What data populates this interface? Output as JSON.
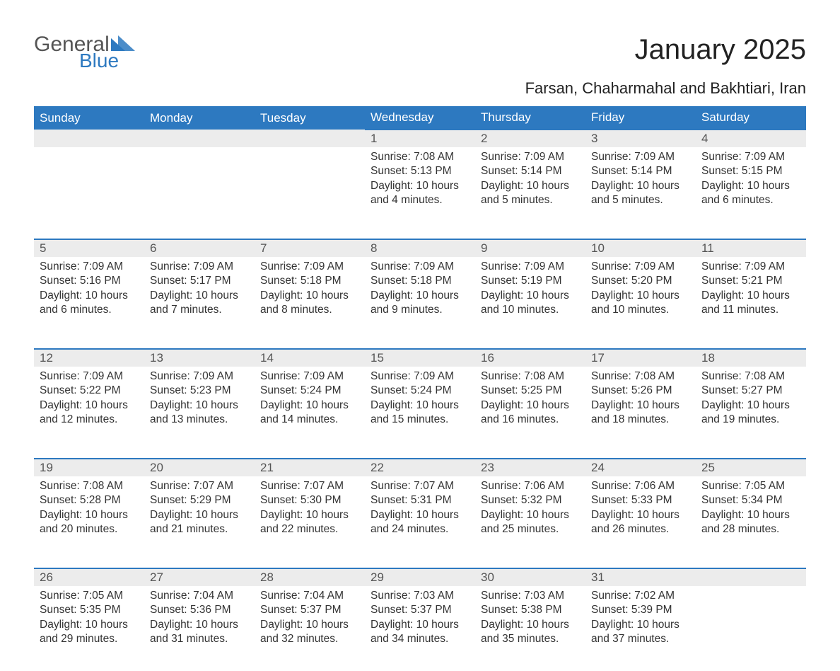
{
  "logo": {
    "general": "General",
    "blue": "Blue",
    "tri_color": "#2d79c0"
  },
  "title": "January 2025",
  "location": "Farsan, Chaharmahal and Bakhtiari, Iran",
  "colors": {
    "header_bg": "#2d79c0",
    "header_text": "#ffffff",
    "daynum_bg": "#ececec",
    "daynum_border": "#2d79c0",
    "body_text": "#333333",
    "page_bg": "#ffffff"
  },
  "day_names": [
    "Sunday",
    "Monday",
    "Tuesday",
    "Wednesday",
    "Thursday",
    "Friday",
    "Saturday"
  ],
  "weeks": [
    [
      null,
      null,
      null,
      {
        "n": "1",
        "sr": "Sunrise: 7:08 AM",
        "ss": "Sunset: 5:13 PM",
        "d1": "Daylight: 10 hours",
        "d2": "and 4 minutes."
      },
      {
        "n": "2",
        "sr": "Sunrise: 7:09 AM",
        "ss": "Sunset: 5:14 PM",
        "d1": "Daylight: 10 hours",
        "d2": "and 5 minutes."
      },
      {
        "n": "3",
        "sr": "Sunrise: 7:09 AM",
        "ss": "Sunset: 5:14 PM",
        "d1": "Daylight: 10 hours",
        "d2": "and 5 minutes."
      },
      {
        "n": "4",
        "sr": "Sunrise: 7:09 AM",
        "ss": "Sunset: 5:15 PM",
        "d1": "Daylight: 10 hours",
        "d2": "and 6 minutes."
      }
    ],
    [
      {
        "n": "5",
        "sr": "Sunrise: 7:09 AM",
        "ss": "Sunset: 5:16 PM",
        "d1": "Daylight: 10 hours",
        "d2": "and 6 minutes."
      },
      {
        "n": "6",
        "sr": "Sunrise: 7:09 AM",
        "ss": "Sunset: 5:17 PM",
        "d1": "Daylight: 10 hours",
        "d2": "and 7 minutes."
      },
      {
        "n": "7",
        "sr": "Sunrise: 7:09 AM",
        "ss": "Sunset: 5:18 PM",
        "d1": "Daylight: 10 hours",
        "d2": "and 8 minutes."
      },
      {
        "n": "8",
        "sr": "Sunrise: 7:09 AM",
        "ss": "Sunset: 5:18 PM",
        "d1": "Daylight: 10 hours",
        "d2": "and 9 minutes."
      },
      {
        "n": "9",
        "sr": "Sunrise: 7:09 AM",
        "ss": "Sunset: 5:19 PM",
        "d1": "Daylight: 10 hours",
        "d2": "and 10 minutes."
      },
      {
        "n": "10",
        "sr": "Sunrise: 7:09 AM",
        "ss": "Sunset: 5:20 PM",
        "d1": "Daylight: 10 hours",
        "d2": "and 10 minutes."
      },
      {
        "n": "11",
        "sr": "Sunrise: 7:09 AM",
        "ss": "Sunset: 5:21 PM",
        "d1": "Daylight: 10 hours",
        "d2": "and 11 minutes."
      }
    ],
    [
      {
        "n": "12",
        "sr": "Sunrise: 7:09 AM",
        "ss": "Sunset: 5:22 PM",
        "d1": "Daylight: 10 hours",
        "d2": "and 12 minutes."
      },
      {
        "n": "13",
        "sr": "Sunrise: 7:09 AM",
        "ss": "Sunset: 5:23 PM",
        "d1": "Daylight: 10 hours",
        "d2": "and 13 minutes."
      },
      {
        "n": "14",
        "sr": "Sunrise: 7:09 AM",
        "ss": "Sunset: 5:24 PM",
        "d1": "Daylight: 10 hours",
        "d2": "and 14 minutes."
      },
      {
        "n": "15",
        "sr": "Sunrise: 7:09 AM",
        "ss": "Sunset: 5:24 PM",
        "d1": "Daylight: 10 hours",
        "d2": "and 15 minutes."
      },
      {
        "n": "16",
        "sr": "Sunrise: 7:08 AM",
        "ss": "Sunset: 5:25 PM",
        "d1": "Daylight: 10 hours",
        "d2": "and 16 minutes."
      },
      {
        "n": "17",
        "sr": "Sunrise: 7:08 AM",
        "ss": "Sunset: 5:26 PM",
        "d1": "Daylight: 10 hours",
        "d2": "and 18 minutes."
      },
      {
        "n": "18",
        "sr": "Sunrise: 7:08 AM",
        "ss": "Sunset: 5:27 PM",
        "d1": "Daylight: 10 hours",
        "d2": "and 19 minutes."
      }
    ],
    [
      {
        "n": "19",
        "sr": "Sunrise: 7:08 AM",
        "ss": "Sunset: 5:28 PM",
        "d1": "Daylight: 10 hours",
        "d2": "and 20 minutes."
      },
      {
        "n": "20",
        "sr": "Sunrise: 7:07 AM",
        "ss": "Sunset: 5:29 PM",
        "d1": "Daylight: 10 hours",
        "d2": "and 21 minutes."
      },
      {
        "n": "21",
        "sr": "Sunrise: 7:07 AM",
        "ss": "Sunset: 5:30 PM",
        "d1": "Daylight: 10 hours",
        "d2": "and 22 minutes."
      },
      {
        "n": "22",
        "sr": "Sunrise: 7:07 AM",
        "ss": "Sunset: 5:31 PM",
        "d1": "Daylight: 10 hours",
        "d2": "and 24 minutes."
      },
      {
        "n": "23",
        "sr": "Sunrise: 7:06 AM",
        "ss": "Sunset: 5:32 PM",
        "d1": "Daylight: 10 hours",
        "d2": "and 25 minutes."
      },
      {
        "n": "24",
        "sr": "Sunrise: 7:06 AM",
        "ss": "Sunset: 5:33 PM",
        "d1": "Daylight: 10 hours",
        "d2": "and 26 minutes."
      },
      {
        "n": "25",
        "sr": "Sunrise: 7:05 AM",
        "ss": "Sunset: 5:34 PM",
        "d1": "Daylight: 10 hours",
        "d2": "and 28 minutes."
      }
    ],
    [
      {
        "n": "26",
        "sr": "Sunrise: 7:05 AM",
        "ss": "Sunset: 5:35 PM",
        "d1": "Daylight: 10 hours",
        "d2": "and 29 minutes."
      },
      {
        "n": "27",
        "sr": "Sunrise: 7:04 AM",
        "ss": "Sunset: 5:36 PM",
        "d1": "Daylight: 10 hours",
        "d2": "and 31 minutes."
      },
      {
        "n": "28",
        "sr": "Sunrise: 7:04 AM",
        "ss": "Sunset: 5:37 PM",
        "d1": "Daylight: 10 hours",
        "d2": "and 32 minutes."
      },
      {
        "n": "29",
        "sr": "Sunrise: 7:03 AM",
        "ss": "Sunset: 5:37 PM",
        "d1": "Daylight: 10 hours",
        "d2": "and 34 minutes."
      },
      {
        "n": "30",
        "sr": "Sunrise: 7:03 AM",
        "ss": "Sunset: 5:38 PM",
        "d1": "Daylight: 10 hours",
        "d2": "and 35 minutes."
      },
      {
        "n": "31",
        "sr": "Sunrise: 7:02 AM",
        "ss": "Sunset: 5:39 PM",
        "d1": "Daylight: 10 hours",
        "d2": "and 37 minutes."
      },
      null
    ]
  ]
}
